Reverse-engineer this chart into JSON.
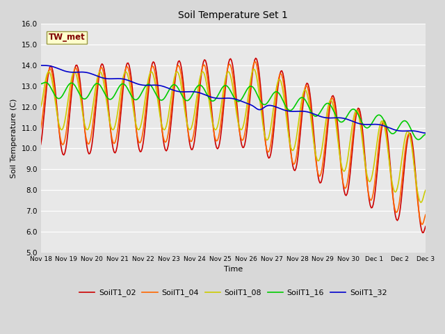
{
  "title": "Soil Temperature Set 1",
  "xlabel": "Time",
  "ylabel": "Soil Temperature (C)",
  "ylim": [
    5.0,
    16.0
  ],
  "yticks": [
    5.0,
    6.0,
    7.0,
    8.0,
    9.0,
    10.0,
    11.0,
    12.0,
    13.0,
    14.0,
    15.0,
    16.0
  ],
  "xtick_labels": [
    "Nov 18",
    "Nov 19",
    "Nov 20",
    "Nov 21",
    "Nov 22",
    "Nov 23",
    "Nov 24",
    "Nov 25",
    "Nov 26",
    "Nov 27",
    "Nov 28",
    "Nov 29",
    "Nov 30",
    "Dec 1",
    "Dec 2",
    "Dec 3"
  ],
  "series_colors": {
    "SoilT1_02": "#cc0000",
    "SoilT1_04": "#ff6600",
    "SoilT1_08": "#cccc00",
    "SoilT1_16": "#00cc00",
    "SoilT1_32": "#0000cc"
  },
  "annotation_text": "TW_met",
  "annotation_box_facecolor": "#ffffcc",
  "annotation_box_edgecolor": "#999944",
  "annotation_text_color": "#800000",
  "fig_facecolor": "#d8d8d8",
  "plot_facecolor": "#e8e8e8",
  "grid_color": "#ffffff",
  "linewidth": 1.2,
  "figsize": [
    6.4,
    4.8
  ],
  "dpi": 100
}
